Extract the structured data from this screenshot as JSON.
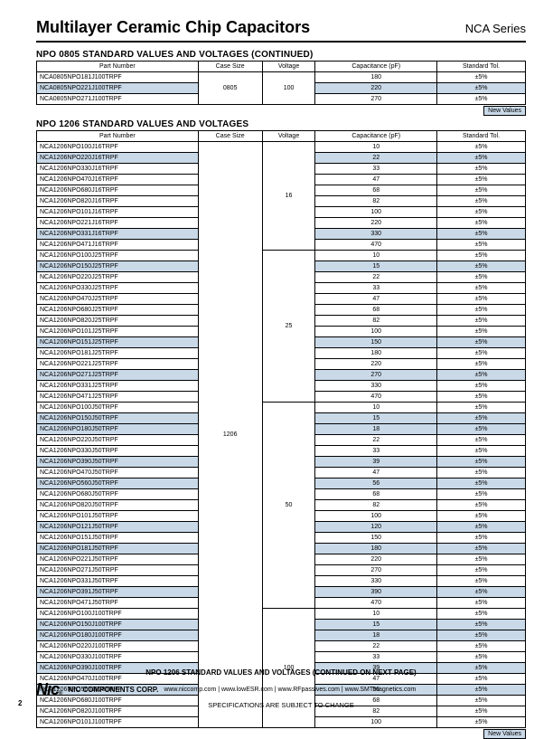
{
  "header": {
    "title": "Multilayer Ceramic Chip Capacitors",
    "series": "NCA Series"
  },
  "section1": {
    "title": "NPO 0805 STANDARD VALUES AND VOLTAGES (CONTINUED)",
    "columns": [
      "Part Number",
      "Case Size",
      "Voltage",
      "Capacitance (pF)",
      "Standard Tol."
    ],
    "case_size": "0805",
    "voltage": "100",
    "rows": [
      {
        "pn": "NCA0805NPO181J100TRPF",
        "cap": "180",
        "tol": "±5%",
        "hl": false
      },
      {
        "pn": "NCA0805NPO221J100TRPF",
        "cap": "220",
        "tol": "±5%",
        "hl": true
      },
      {
        "pn": "NCA0805NPO271J100TRPF",
        "cap": "270",
        "tol": "±5%",
        "hl": false
      }
    ],
    "new_values": "New Values"
  },
  "section2": {
    "title": "NPO 1206 STANDARD VALUES AND VOLTAGES",
    "columns": [
      "Part Number",
      "Case Size",
      "Voltage",
      "Capacitance (pF)",
      "Standard Tol."
    ],
    "case_size": "1206",
    "voltage_groups": [
      {
        "voltage": "16",
        "rows": [
          {
            "pn": "NCA1206NPO100J16TRPF",
            "cap": "10",
            "tol": "±5%",
            "hl": false
          },
          {
            "pn": "NCA1206NPO220J16TRPF",
            "cap": "22",
            "tol": "±5%",
            "hl": true
          },
          {
            "pn": "NCA1206NPO330J16TRPF",
            "cap": "33",
            "tol": "±5%",
            "hl": false
          },
          {
            "pn": "NCA1206NPO470J16TRPF",
            "cap": "47",
            "tol": "±5%",
            "hl": false
          },
          {
            "pn": "NCA1206NPO680J16TRPF",
            "cap": "68",
            "tol": "±5%",
            "hl": false
          },
          {
            "pn": "NCA1206NPO820J16TRPF",
            "cap": "82",
            "tol": "±5%",
            "hl": false
          },
          {
            "pn": "NCA1206NPO101J16TRPF",
            "cap": "100",
            "tol": "±5%",
            "hl": false
          },
          {
            "pn": "NCA1206NPO221J16TRPF",
            "cap": "220",
            "tol": "±5%",
            "hl": false
          },
          {
            "pn": "NCA1206NPO331J16TRPF",
            "cap": "330",
            "tol": "±5%",
            "hl": true
          },
          {
            "pn": "NCA1206NPO471J16TRPF",
            "cap": "470",
            "tol": "±5%",
            "hl": false
          }
        ]
      },
      {
        "voltage": "25",
        "rows": [
          {
            "pn": "NCA1206NPO100J25TRPF",
            "cap": "10",
            "tol": "±5%",
            "hl": false
          },
          {
            "pn": "NCA1206NPO150J25TRPF",
            "cap": "15",
            "tol": "±5%",
            "hl": true
          },
          {
            "pn": "NCA1206NPO220J25TRPF",
            "cap": "22",
            "tol": "±5%",
            "hl": false
          },
          {
            "pn": "NCA1206NPO330J25TRPF",
            "cap": "33",
            "tol": "±5%",
            "hl": false
          },
          {
            "pn": "NCA1206NPO470J25TRPF",
            "cap": "47",
            "tol": "±5%",
            "hl": false
          },
          {
            "pn": "NCA1206NPO680J25TRPF",
            "cap": "68",
            "tol": "±5%",
            "hl": false
          },
          {
            "pn": "NCA1206NPO820J25TRPF",
            "cap": "82",
            "tol": "±5%",
            "hl": false
          },
          {
            "pn": "NCA1206NPO101J25TRPF",
            "cap": "100",
            "tol": "±5%",
            "hl": false
          },
          {
            "pn": "NCA1206NPO151J25TRPF",
            "cap": "150",
            "tol": "±5%",
            "hl": true
          },
          {
            "pn": "NCA1206NPO181J25TRPF",
            "cap": "180",
            "tol": "±5%",
            "hl": false
          },
          {
            "pn": "NCA1206NPO221J25TRPF",
            "cap": "220",
            "tol": "±5%",
            "hl": false
          },
          {
            "pn": "NCA1206NPO271J25TRPF",
            "cap": "270",
            "tol": "±5%",
            "hl": true
          },
          {
            "pn": "NCA1206NPO331J25TRPF",
            "cap": "330",
            "tol": "±5%",
            "hl": false
          },
          {
            "pn": "NCA1206NPO471J25TRPF",
            "cap": "470",
            "tol": "±5%",
            "hl": false
          }
        ]
      },
      {
        "voltage": "50",
        "rows": [
          {
            "pn": "NCA1206NPO100J50TRPF",
            "cap": "10",
            "tol": "±5%",
            "hl": false
          },
          {
            "pn": "NCA1206NPO150J50TRPF",
            "cap": "15",
            "tol": "±5%",
            "hl": true
          },
          {
            "pn": "NCA1206NPO180J50TRPF",
            "cap": "18",
            "tol": "±5%",
            "hl": true
          },
          {
            "pn": "NCA1206NPO220J50TRPF",
            "cap": "22",
            "tol": "±5%",
            "hl": false
          },
          {
            "pn": "NCA1206NPO330J50TRPF",
            "cap": "33",
            "tol": "±5%",
            "hl": false
          },
          {
            "pn": "NCA1206NPO390J50TRPF",
            "cap": "39",
            "tol": "±5%",
            "hl": true
          },
          {
            "pn": "NCA1206NPO470J50TRPF",
            "cap": "47",
            "tol": "±5%",
            "hl": false
          },
          {
            "pn": "NCA1206NPO560J50TRPF",
            "cap": "56",
            "tol": "±5%",
            "hl": true
          },
          {
            "pn": "NCA1206NPO680J50TRPF",
            "cap": "68",
            "tol": "±5%",
            "hl": false
          },
          {
            "pn": "NCA1206NPO820J50TRPF",
            "cap": "82",
            "tol": "±5%",
            "hl": false
          },
          {
            "pn": "NCA1206NPO101J50TRPF",
            "cap": "100",
            "tol": "±5%",
            "hl": false
          },
          {
            "pn": "NCA1206NPO121J50TRPF",
            "cap": "120",
            "tol": "±5%",
            "hl": true
          },
          {
            "pn": "NCA1206NPO151J50TRPF",
            "cap": "150",
            "tol": "±5%",
            "hl": false
          },
          {
            "pn": "NCA1206NPO181J50TRPF",
            "cap": "180",
            "tol": "±5%",
            "hl": true
          },
          {
            "pn": "NCA1206NPO221J50TRPF",
            "cap": "220",
            "tol": "±5%",
            "hl": false
          },
          {
            "pn": "NCA1206NPO271J50TRPF",
            "cap": "270",
            "tol": "±5%",
            "hl": false
          },
          {
            "pn": "NCA1206NPO331J50TRPF",
            "cap": "330",
            "tol": "±5%",
            "hl": false
          },
          {
            "pn": "NCA1206NPO391J50TRPF",
            "cap": "390",
            "tol": "±5%",
            "hl": true
          },
          {
            "pn": "NCA1206NPO471J50TRPF",
            "cap": "470",
            "tol": "±5%",
            "hl": false
          }
        ]
      },
      {
        "voltage": "100",
        "rows": [
          {
            "pn": "NCA1206NPO100J100TRPF",
            "cap": "10",
            "tol": "±5%",
            "hl": false
          },
          {
            "pn": "NCA1206NPO150J100TRPF",
            "cap": "15",
            "tol": "±5%",
            "hl": true
          },
          {
            "pn": "NCA1206NPO180J100TRPF",
            "cap": "18",
            "tol": "±5%",
            "hl": true
          },
          {
            "pn": "NCA1206NPO220J100TRPF",
            "cap": "22",
            "tol": "±5%",
            "hl": false
          },
          {
            "pn": "NCA1206NPO330J100TRPF",
            "cap": "33",
            "tol": "±5%",
            "hl": false
          },
          {
            "pn": "NCA1206NPO390J100TRPF",
            "cap": "39",
            "tol": "±5%",
            "hl": true
          },
          {
            "pn": "NCA1206NPO470J100TRPF",
            "cap": "47",
            "tol": "±5%",
            "hl": false
          },
          {
            "pn": "NCA1206NPO560J100TRPF",
            "cap": "56",
            "tol": "±5%",
            "hl": true
          },
          {
            "pn": "NCA1206NPO680J100TRPF",
            "cap": "68",
            "tol": "±5%",
            "hl": false
          },
          {
            "pn": "NCA1206NPO820J100TRPF",
            "cap": "82",
            "tol": "±5%",
            "hl": false
          },
          {
            "pn": "NCA1206NPO101J100TRPF",
            "cap": "100",
            "tol": "±5%",
            "hl": false
          }
        ]
      }
    ],
    "new_values": "New Values"
  },
  "footer": {
    "continue": "NPO 1206 STANDARD VALUES AND VOLTAGES (CONTINUED ON NEXT PAGE)",
    "corp": "NIC COMPONENTS CORP.",
    "urls": "www.niccomp.com   |   www.lowESR.com   |   www.RFpassives.com   |   www.SMTmagnetics.com",
    "spec": "SPECIFICATIONS ARE SUBJECT TO CHANGE",
    "page": "2"
  }
}
